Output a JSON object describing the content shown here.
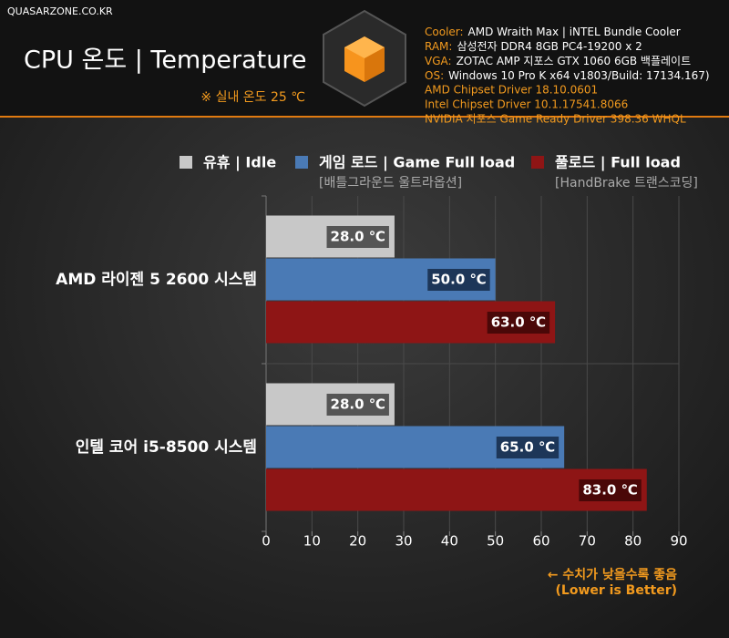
{
  "site": "QUASARZONE.CO.KR",
  "specs": [
    {
      "key": "Cooler:",
      "value": "AMD Wraith Max | iNTEL Bundle Cooler"
    },
    {
      "key": "RAM:",
      "value": "삼성전자 DDR4 8GB PC4-19200 x 2"
    },
    {
      "key": "VGA:",
      "value": "ZOTAC AMP 지포스 GTX 1060 6GB 백플레이트"
    },
    {
      "key": "OS:",
      "value": "Windows 10 Pro K x64 v1803/Build: 17134.167)"
    }
  ],
  "drivers": [
    "AMD Chipset Driver 18.10.0601",
    "Intel Chipset Driver 10.1.17541.8066",
    "NVIDIA 지포스 Game Ready Driver 398.36 WHQL"
  ],
  "chart_data": {
    "type": "bar",
    "orientation": "horizontal",
    "title": "CPU 온도 | Temperature",
    "subtitle": "※ 실내 온도 25 ℃",
    "categories": [
      "AMD 라이젠 5 2600 시스템",
      "인텔 코어 i5-8500 시스템"
    ],
    "series": [
      {
        "name": "유휴 | Idle",
        "color": "#c8c8c8",
        "label_box": "#555555",
        "values": [
          28,
          28
        ],
        "value_labels": [
          "28.0 ℃",
          "28.0 ℃"
        ]
      },
      {
        "name": "게임 로드 | Game Full load",
        "note": "[배틀그라운드 울트라옵션]",
        "color": "#4a7ab5",
        "label_box": "#1d3658",
        "values": [
          50,
          65
        ],
        "value_labels": [
          "50.0 ℃",
          "65.0 ℃"
        ]
      },
      {
        "name": "풀로드 | Full load",
        "note": "[HandBrake 트랜스코딩]",
        "color": "#8e1515",
        "label_box": "#4a0808",
        "values": [
          63,
          83
        ],
        "value_labels": [
          "63.0 ℃",
          "83.0 ℃"
        ]
      }
    ],
    "xlim": [
      0,
      90
    ],
    "xticks": [
      0,
      10,
      20,
      30,
      40,
      50,
      60,
      70,
      80,
      90
    ],
    "grid": true,
    "annotation": [
      "← 수치가 낮을수록 좋음",
      "(Lower is Better)"
    ]
  }
}
